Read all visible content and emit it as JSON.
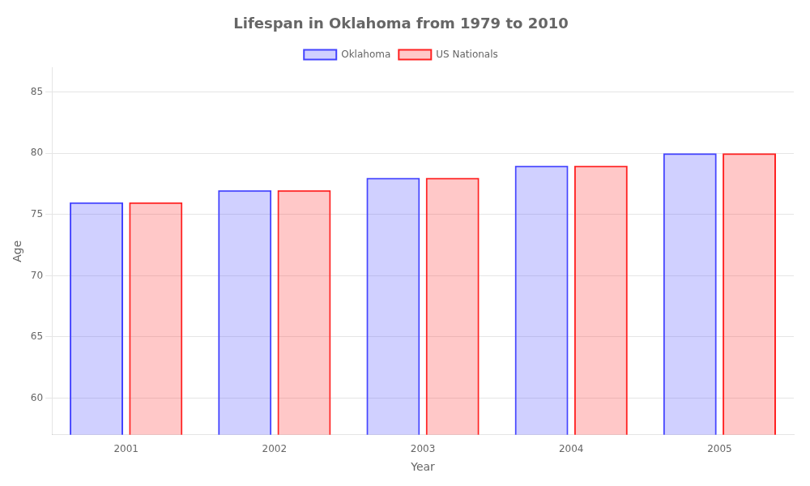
{
  "chart_data": {
    "type": "bar",
    "title": "Lifespan in Oklahoma from 1979 to 2010",
    "x_label": "Year",
    "y_label": "Age",
    "categories": [
      "2001",
      "2002",
      "2003",
      "2004",
      "2005"
    ],
    "series": [
      {
        "name": "Oklahoma",
        "color": "#4444ff",
        "values": [
          76,
          77,
          78,
          79,
          80
        ]
      },
      {
        "name": "US Nationals",
        "color": "#ff2222",
        "values": [
          76,
          77,
          78,
          79,
          80
        ]
      }
    ],
    "ylim": [
      57,
      87
    ],
    "yticks": [
      60,
      65,
      70,
      75,
      80,
      85
    ],
    "grid": true,
    "legend": "top"
  }
}
